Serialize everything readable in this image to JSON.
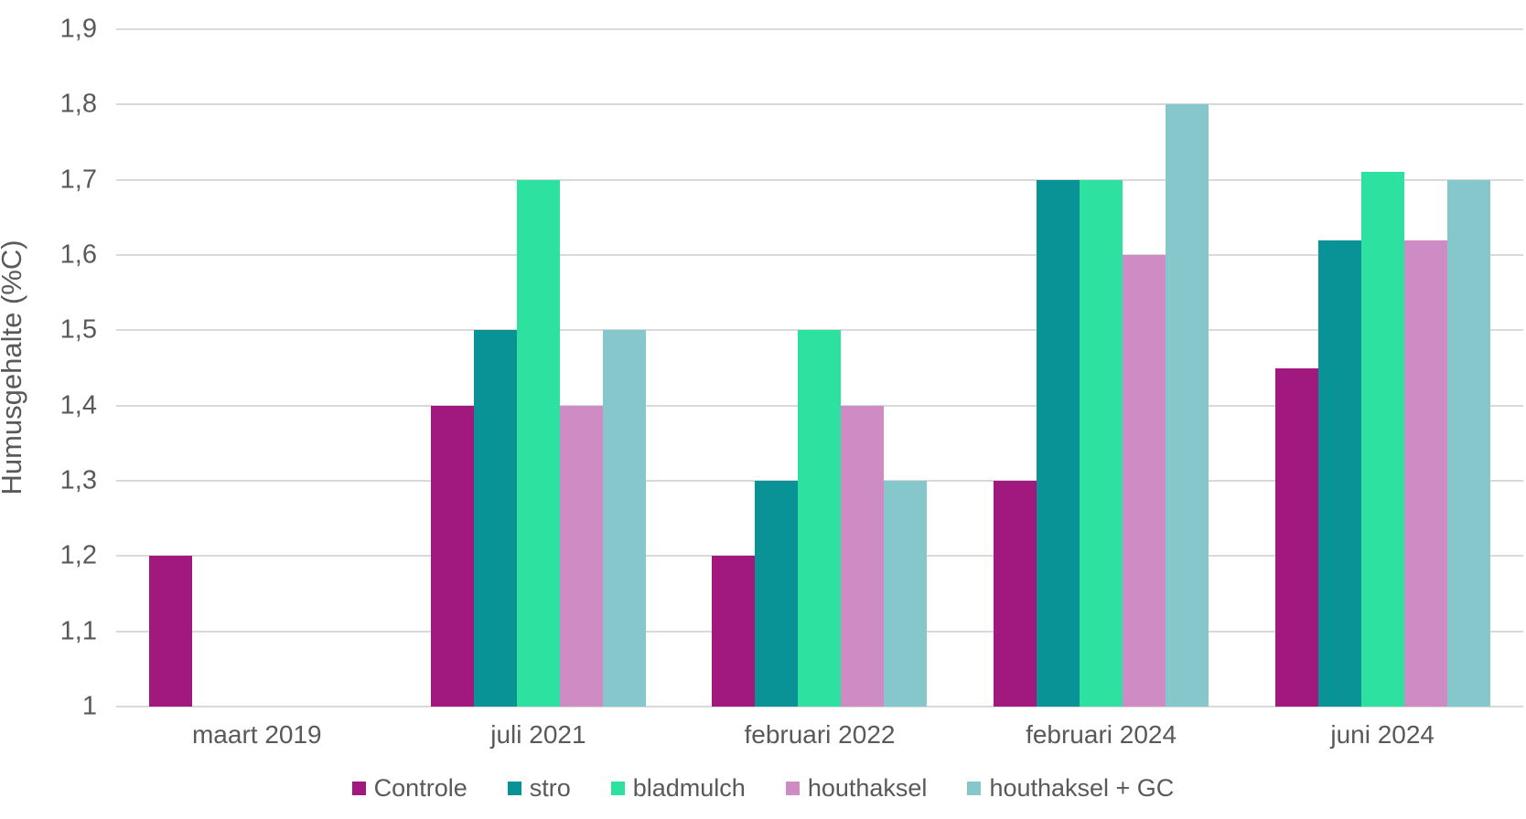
{
  "chart_data": {
    "type": "bar",
    "title": "",
    "xlabel": "",
    "ylabel": "Humusgehalte (%C)",
    "ylim": [
      1.0,
      1.9
    ],
    "ytick_step": 0.1,
    "ytick_labels_top_to_bottom": [
      "1,9",
      "1,8",
      "1,7",
      "1,6",
      "1,5",
      "1,4",
      "1,3",
      "1,2",
      "1,1",
      "1"
    ],
    "grid": "horizontal-only",
    "legend_position": "bottom-center",
    "categories": [
      "maart 2019",
      "juli 2021",
      "februari 2022",
      "februari 2024",
      "juni 2024"
    ],
    "series": [
      {
        "name": "Controle",
        "color": "#A1197F",
        "values": [
          1.2,
          1.4,
          1.2,
          1.3,
          1.45
        ]
      },
      {
        "name": "stro",
        "color": "#0A9396",
        "values": [
          null,
          1.5,
          1.3,
          1.7,
          1.62
        ]
      },
      {
        "name": "bladmulch",
        "color": "#2DE1A1",
        "values": [
          null,
          1.7,
          1.5,
          1.7,
          1.71
        ]
      },
      {
        "name": "houthaksel",
        "color": "#CF8BC4",
        "values": [
          null,
          1.4,
          1.4,
          1.6,
          1.62
        ]
      },
      {
        "name": "houthaksel + GC",
        "color": "#85C7CB",
        "values": [
          null,
          1.5,
          1.3,
          1.8,
          1.7
        ]
      }
    ]
  },
  "colors": {
    "background": "#FFFFFF",
    "gridline": "#D9D9D9",
    "text": "#595959"
  }
}
